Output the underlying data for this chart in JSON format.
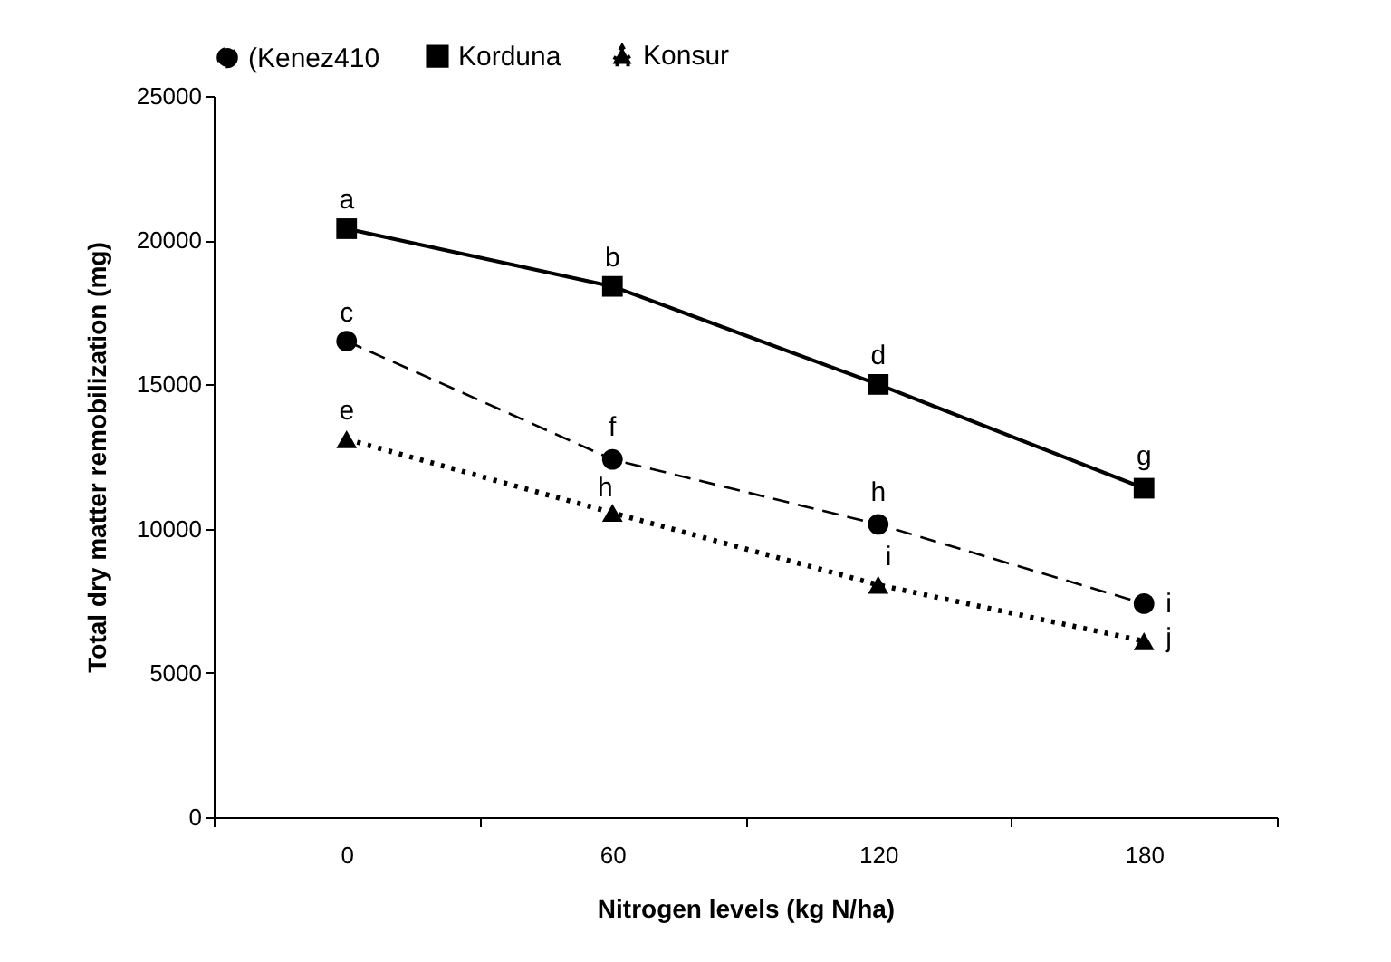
{
  "chart_data": {
    "type": "line",
    "xlabel": "Nitrogen levels (kg N/ha)",
    "ylabel": "Total dry matter remobilization (mg)",
    "categories": [
      "0",
      "60",
      "120",
      "180"
    ],
    "series": [
      {
        "name": "(Kenez410",
        "color": "#000000",
        "line_style": "dashed",
        "marker": "circle",
        "values": [
          16500,
          12400,
          10150,
          7400
        ]
      },
      {
        "name": "Korduna",
        "color": "#000000",
        "line_style": "solid",
        "marker": "square",
        "values": [
          20400,
          18400,
          15000,
          11400
        ]
      },
      {
        "name": "Konsur",
        "color": "#000000",
        "line_style": "dotted",
        "marker": "triangle",
        "values": [
          13100,
          10550,
          8050,
          6100
        ]
      }
    ],
    "ylim": [
      0,
      25000
    ],
    "yticks": [
      0,
      5000,
      10000,
      15000,
      20000,
      25000
    ],
    "grid": false,
    "legend": "top",
    "annotations": [
      {
        "text": "a",
        "x": "0",
        "y": 20400
      },
      {
        "text": "b",
        "x": "60",
        "y": 18400
      },
      {
        "text": "c",
        "x": "0",
        "y": 16500
      },
      {
        "text": "d",
        "x": "120",
        "y": 15000
      },
      {
        "text": "e",
        "x": "0",
        "y": 13100
      },
      {
        "text": "f",
        "x": "60",
        "y": 12400
      },
      {
        "text": "g",
        "x": "180",
        "y": 11400
      },
      {
        "text": "h",
        "x": "60",
        "y": 10550
      },
      {
        "text": "h",
        "x": "120",
        "y": 10150
      },
      {
        "text": "i",
        "x": "120",
        "y": 8050
      },
      {
        "text": "i",
        "x": "180",
        "y": 7400
      },
      {
        "text": "j",
        "x": "180",
        "y": 6100
      }
    ]
  }
}
